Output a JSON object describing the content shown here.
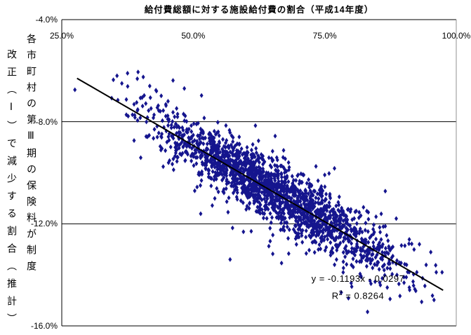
{
  "chart": {
    "title": "給付費総額に対する施設給付費の割合（平成14年度）",
    "y_axis_title_column_right": "各市町村の第Ⅲ期の保険料が制度",
    "y_axis_title_column_left": "改正（Ⅰ）で減少する割合（推計）",
    "equation": {
      "line1": "y = -0.1193x - 0.0297",
      "r2_base": "R",
      "r2_sup": "2",
      "r2_rest": " = 0.8264"
    }
  },
  "chart_data": {
    "type": "scatter",
    "title": "給付費総額に対する施設給付費の割合（平成14年度）",
    "xlabel": "給付費総額に対する施設給付費の割合（平成14年度）",
    "ylabel": "各市町村の第Ⅲ期の保険料が制度改正（Ⅰ）で減少する割合（推計）",
    "xlim": [
      0.25,
      1.0
    ],
    "ylim": [
      -0.16,
      -0.04
    ],
    "x_ticks": [
      0.25,
      0.5,
      0.75,
      1.0
    ],
    "x_tick_labels": [
      "25.0%",
      "50.0%",
      "75.0%",
      "100.0%"
    ],
    "y_ticks": [
      -0.04,
      -0.08,
      -0.12,
      -0.16
    ],
    "y_tick_labels": [
      "-4.0%",
      "-8.0%",
      "-12.0%",
      "-16.0%"
    ],
    "grid": "horizontal-only",
    "legend": "none",
    "axis_position": "x-axis-at-top",
    "marker": {
      "shape": "diamond",
      "color": "#15158E",
      "width": 5,
      "height": 7
    },
    "trendline": {
      "slope": -0.1193,
      "intercept": -0.0297,
      "r2": 0.8264,
      "equation_label": "y = -0.1193x - 0.0297",
      "r2_label": "R2 = 0.8264",
      "x_start": 0.279,
      "x_end": 0.975,
      "color": "#000000",
      "width": 2
    },
    "points": {
      "generated": true,
      "note": "dense cloud of ~2000 municipality points along regression line y=-0.1193x-0.0297",
      "n": 2000,
      "seed": 7,
      "x_mean": 0.655,
      "x_sd": 0.115,
      "x_min": 0.28,
      "x_max": 0.972,
      "residual_core_sd": 0.0055,
      "residual_wide_sd": 0.0105,
      "wide_fraction": 0.15,
      "y_clip": [
        -0.1545,
        -0.046
      ]
    },
    "outlier_points": [
      [
        0.275,
        -0.0675
      ],
      [
        0.355,
        -0.062
      ],
      [
        0.375,
        -0.061
      ],
      [
        0.395,
        -0.0605
      ],
      [
        0.405,
        -0.0625
      ],
      [
        0.43,
        -0.068
      ],
      [
        0.452,
        -0.072
      ],
      [
        0.57,
        -0.134
      ],
      [
        0.93,
        -0.128
      ],
      [
        0.962,
        -0.139
      ],
      [
        0.973,
        -0.139
      ]
    ]
  },
  "colors": {
    "marker": "#15158E",
    "axis": "#000000",
    "right_border": "#909090",
    "gridline": "#000000",
    "background": "#FFFFFF"
  }
}
